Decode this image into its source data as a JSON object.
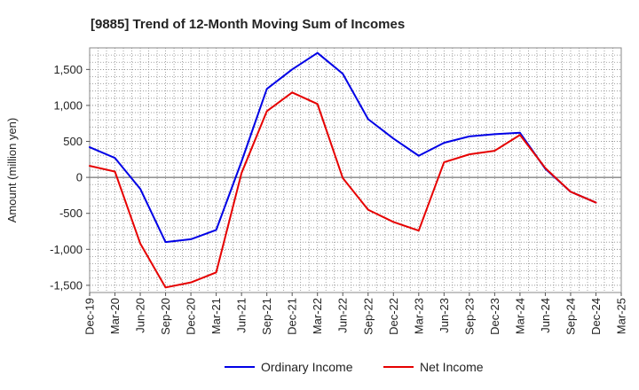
{
  "chart_data": {
    "type": "line",
    "title": "[9885]  Trend of 12-Month Moving Sum of Incomes",
    "xlabel": "",
    "ylabel": "Amount (million yen)",
    "ylim": [
      -1600,
      1800
    ],
    "y_ticks": [
      -1500,
      -1000,
      -500,
      0,
      500,
      1000,
      1500
    ],
    "y_tick_labels": [
      "-1,500",
      "-1,000",
      "-500",
      "0",
      "500",
      "1,000",
      "1,500"
    ],
    "categories": [
      "Dec-19",
      "Mar-20",
      "Jun-20",
      "Sep-20",
      "Dec-20",
      "Mar-21",
      "Jun-21",
      "Sep-21",
      "Dec-21",
      "Mar-22",
      "Jun-22",
      "Sep-22",
      "Dec-22",
      "Mar-23",
      "Jun-23",
      "Sep-23",
      "Dec-23",
      "Mar-24",
      "Jun-24",
      "Sep-24",
      "Dec-24",
      "Mar-25"
    ],
    "grid": true,
    "legend_position": "bottom",
    "series": [
      {
        "name": "Ordinary Income",
        "color": "#0000e6",
        "values": [
          420,
          270,
          -160,
          -900,
          -860,
          -730,
          220,
          1230,
          1500,
          1730,
          1440,
          810,
          540,
          300,
          480,
          570,
          600,
          620,
          120,
          -200,
          -350,
          null
        ]
      },
      {
        "name": "Net Income",
        "color": "#e60000",
        "values": [
          160,
          80,
          -920,
          -1530,
          -1460,
          -1320,
          60,
          920,
          1180,
          1020,
          -10,
          -450,
          -620,
          -740,
          210,
          320,
          370,
          590,
          130,
          -200,
          -350,
          null
        ]
      }
    ]
  }
}
